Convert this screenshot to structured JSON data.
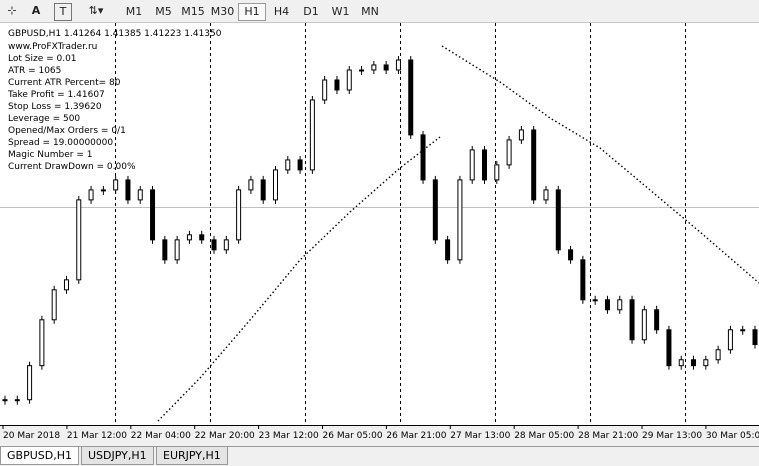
{
  "toolbar": {
    "timeframes": [
      "M1",
      "M5",
      "M15",
      "M30",
      "H1",
      "H4",
      "D1",
      "W1",
      "MN"
    ]
  },
  "chart": {
    "header": "GBPUSD,H1  1.41264 1.41385 1.41223 1.41350",
    "info_lines": [
      "www.ProFXTrader.ru",
      "Lot Size = 0.01",
      "ATR = 1065",
      "Current ATR Percent= 80",
      "Take Profit = 1.41607",
      "Stop Loss = 1.39620",
      "Leverage = 500",
      "Opened/Max Orders = 0/1",
      "Spread = 19.00000000",
      "Magic Number = 1",
      "Current DrawDown = 0.00%"
    ],
    "x_labels": [
      "20 Mar 2018",
      "21 Mar 12:00",
      "22 Mar 04:00",
      "22 Mar 20:00",
      "23 Mar 12:00",
      "26 Mar 05:00",
      "26 Mar 21:00",
      "27 Mar 13:00",
      "28 Mar 05:00",
      "28 Mar 21:00",
      "29 Mar 13:00",
      "30 Mar 05:00"
    ],
    "ylim": [
      1.4044,
      1.4493
    ],
    "closes": [
      1.40726,
      1.40726,
      1.41111,
      1.4163,
      1.41969,
      1.42082,
      1.42986,
      1.43099,
      1.43099,
      1.43212,
      1.42986,
      1.43099,
      1.42534,
      1.42308,
      1.42534,
      1.42591,
      1.42534,
      1.42421,
      1.42534,
      1.43099,
      1.43212,
      1.42986,
      1.43325,
      1.43438,
      1.43325,
      1.44116,
      1.44342,
      1.44229,
      1.44455,
      1.44455,
      1.44512,
      1.44455,
      1.44568,
      1.43721,
      1.43212,
      1.42534,
      1.42308,
      1.43212,
      1.43551,
      1.43212,
      1.43382,
      1.43664,
      1.43777,
      1.42986,
      1.43099,
      1.42421,
      1.42308,
      1.41856,
      1.41856,
      1.41743,
      1.41856,
      1.41404,
      1.41743,
      1.41517,
      1.41111,
      1.41178,
      1.41111,
      1.41178,
      1.41291,
      1.41517,
      1.41517,
      1.4135
    ]
  },
  "tabs": [
    "GBPUSD,H1",
    "USDJPY,H1",
    "EURJPY,H1"
  ]
}
